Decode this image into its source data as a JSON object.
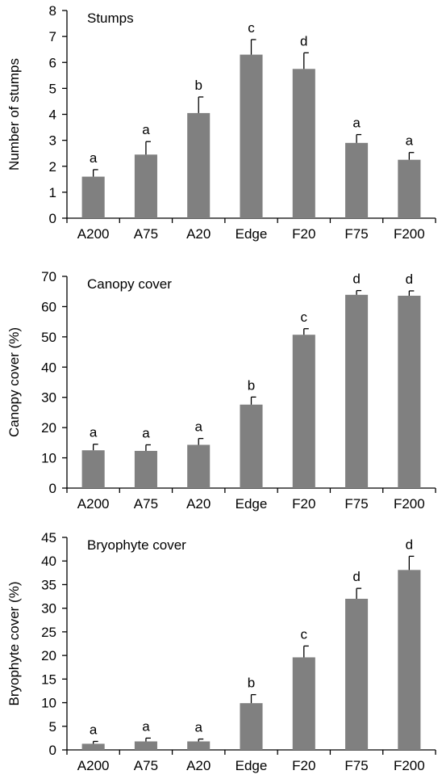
{
  "style": {
    "bar_color": "#808080",
    "axis_color": "#000000"
  },
  "chart_data": [
    {
      "type": "bar",
      "title": "Stumps",
      "ylabel": "Number of stumps",
      "xlabel": "",
      "categories": [
        "A200",
        "A75",
        "A20",
        "Edge",
        "F20",
        "F75",
        "F200"
      ],
      "values": [
        1.6,
        2.45,
        4.05,
        6.3,
        5.75,
        2.9,
        2.25
      ],
      "errors": [
        0.27,
        0.5,
        0.62,
        0.58,
        0.62,
        0.32,
        0.28
      ],
      "letters": [
        "a",
        "a",
        "b",
        "c",
        "d",
        "a",
        "a"
      ],
      "ylim": [
        0,
        8
      ],
      "yticks": [
        0,
        1,
        2,
        3,
        4,
        5,
        6,
        7,
        8
      ],
      "grid": false
    },
    {
      "type": "bar",
      "title": "Canopy cover",
      "ylabel": "Canopy cover (%)",
      "xlabel": "",
      "categories": [
        "A200",
        "A75",
        "A20",
        "Edge",
        "F20",
        "F75",
        "F200"
      ],
      "values": [
        12.5,
        12.3,
        14.3,
        27.6,
        50.7,
        63.9,
        63.6
      ],
      "errors": [
        2.0,
        2.0,
        2.1,
        2.5,
        2.0,
        1.4,
        1.6
      ],
      "letters": [
        "a",
        "a",
        "a",
        "b",
        "c",
        "d",
        "d"
      ],
      "ylim": [
        0,
        70
      ],
      "yticks": [
        0,
        10,
        20,
        30,
        40,
        50,
        60,
        70
      ],
      "grid": false
    },
    {
      "type": "bar",
      "title": "Bryophyte cover",
      "ylabel": "Bryophyte cover (%)",
      "xlabel": "",
      "categories": [
        "A200",
        "A75",
        "A20",
        "Edge",
        "F20",
        "F75",
        "F200"
      ],
      "values": [
        1.3,
        1.8,
        1.8,
        9.9,
        19.6,
        32.0,
        38.1
      ],
      "errors": [
        0.5,
        0.7,
        0.5,
        1.8,
        2.4,
        2.2,
        2.9
      ],
      "letters": [
        "a",
        "a",
        "a",
        "b",
        "c",
        "d",
        "d"
      ],
      "ylim": [
        0,
        45
      ],
      "yticks": [
        0,
        5,
        10,
        15,
        20,
        25,
        30,
        35,
        40,
        45
      ],
      "grid": false
    }
  ]
}
